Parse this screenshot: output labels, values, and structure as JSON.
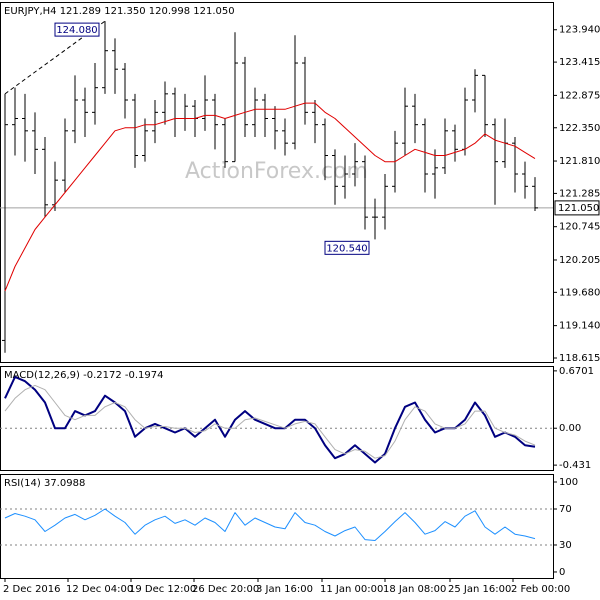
{
  "chart_data": [
    {
      "type": "ohlc",
      "title": "EURJPY,H4  121.289 121.350 120.998 121.050",
      "watermark": "ActionForex.com",
      "xlim": [
        -0.5,
        54.8
      ],
      "ylim": [
        118.55,
        124.39
      ],
      "yticks": [
        {
          "value": 123.94,
          "label": "123.940"
        },
        123.415,
        122.875,
        {
          "value": 122.35,
          "label": "122.350"
        },
        {
          "value": 121.81,
          "label": "121.810"
        },
        121.285,
        120.745,
        120.205,
        {
          "value": 119.68,
          "label": "119.680"
        },
        {
          "value": 119.14,
          "label": "119.140"
        },
        118.615
      ],
      "last_price": {
        "value": 121.05,
        "label": "121.050"
      },
      "annotations": [
        {
          "value": 124.08,
          "text": "124.080"
        },
        {
          "value": 120.54,
          "text": "120.540"
        }
      ],
      "color": "#000000",
      "open": [
        118.9,
        122.4,
        122.5,
        122.3,
        122.0,
        121.1,
        121.5,
        122.3,
        122.8,
        122.6,
        123.0,
        123.6,
        123.3,
        122.8,
        121.9,
        122.3,
        122.6,
        122.9,
        122.5,
        122.7,
        122.5,
        122.8,
        122.4,
        121.8,
        123.4,
        122.4,
        122.8,
        122.5,
        122.3,
        122.1,
        123.4,
        122.6,
        122.4,
        121.9,
        121.4,
        121.6,
        121.8,
        120.9,
        120.9,
        121.4,
        122.1,
        122.7,
        122.4,
        121.6,
        121.7,
        122.3,
        122.0,
        122.8,
        123.2,
        122.4,
        121.8,
        122.1,
        121.6,
        121.4
      ],
      "high": [
        122.9,
        123.0,
        122.9,
        122.6,
        122.2,
        121.8,
        122.5,
        123.2,
        123.0,
        123.4,
        124.08,
        123.8,
        123.4,
        122.9,
        122.5,
        122.8,
        123.1,
        123.0,
        122.9,
        122.8,
        123.2,
        122.9,
        122.5,
        123.9,
        123.5,
        123.0,
        122.9,
        122.7,
        122.5,
        123.85,
        123.5,
        122.8,
        122.5,
        122.0,
        121.9,
        122.1,
        121.9,
        121.2,
        121.6,
        122.3,
        123.0,
        122.9,
        122.5,
        122.0,
        122.5,
        122.4,
        123.0,
        123.3,
        123.2,
        122.5,
        122.5,
        122.2,
        121.8,
        121.55
      ],
      "low": [
        118.7,
        121.9,
        121.8,
        121.6,
        120.9,
        121.0,
        121.3,
        122.1,
        122.2,
        122.4,
        122.9,
        122.9,
        122.5,
        121.7,
        121.8,
        122.1,
        122.4,
        122.2,
        122.3,
        122.2,
        122.3,
        122.0,
        121.7,
        121.8,
        122.2,
        122.2,
        122.2,
        122.0,
        121.9,
        122.0,
        122.4,
        122.1,
        121.5,
        121.1,
        121.2,
        121.4,
        120.7,
        120.54,
        120.7,
        121.3,
        121.9,
        122.1,
        121.3,
        121.2,
        121.6,
        121.8,
        121.9,
        122.6,
        122.2,
        121.1,
        121.7,
        121.3,
        121.2,
        121.0
      ],
      "close": [
        122.4,
        122.5,
        122.3,
        122.0,
        121.1,
        121.5,
        122.3,
        122.8,
        122.6,
        123.0,
        123.6,
        123.3,
        122.8,
        121.9,
        122.3,
        122.6,
        122.9,
        122.5,
        122.7,
        122.5,
        122.8,
        122.4,
        121.8,
        123.4,
        122.4,
        122.8,
        122.5,
        122.3,
        122.1,
        123.4,
        122.6,
        122.4,
        121.9,
        121.4,
        121.6,
        121.8,
        120.9,
        120.9,
        121.4,
        122.1,
        122.7,
        122.4,
        121.6,
        121.7,
        122.3,
        122.0,
        122.8,
        123.2,
        122.4,
        121.8,
        122.1,
        121.6,
        121.4,
        121.05
      ],
      "series": [
        {
          "color": "#e00000",
          "values": [
            119.7,
            120.1,
            120.4,
            120.7,
            120.9,
            121.1,
            121.3,
            121.5,
            121.7,
            121.9,
            122.1,
            122.3,
            122.35,
            122.35,
            122.4,
            122.4,
            122.45,
            122.5,
            122.5,
            122.5,
            122.55,
            122.55,
            122.5,
            122.55,
            122.6,
            122.65,
            122.65,
            122.65,
            122.65,
            122.7,
            122.75,
            122.75,
            122.6,
            122.5,
            122.35,
            122.2,
            122.05,
            121.9,
            121.8,
            121.8,
            121.9,
            122.0,
            121.95,
            121.9,
            121.9,
            121.95,
            122.0,
            122.1,
            122.25,
            122.15,
            122.1,
            122.05,
            121.95,
            121.85
          ]
        }
      ]
    },
    {
      "type": "line",
      "title": "MACD(12,26,9) -0.2172 -0.1974",
      "xlim": [
        -0.5,
        54.8
      ],
      "ylim": [
        -0.488,
        0.727
      ],
      "yticks": [
        0.6701,
        {
          "value": 0,
          "label": "0.00"
        },
        -0.431
      ],
      "series": [
        {
          "color": "#000080",
          "width": 2,
          "values": [
            0.35,
            0.6,
            0.55,
            0.45,
            0.3,
            0.0,
            0.0,
            0.2,
            0.15,
            0.2,
            0.38,
            0.3,
            0.2,
            -0.1,
            0.0,
            0.05,
            0.0,
            -0.05,
            0.0,
            -0.1,
            0.0,
            0.1,
            -0.1,
            0.1,
            0.2,
            0.1,
            0.05,
            0.0,
            0.0,
            0.1,
            0.1,
            0.0,
            -0.2,
            -0.35,
            -0.3,
            -0.2,
            -0.3,
            -0.4,
            -0.3,
            0.0,
            0.25,
            0.3,
            0.1,
            -0.05,
            0.0,
            0.0,
            0.1,
            0.3,
            0.15,
            -0.1,
            -0.05,
            -0.1,
            -0.2,
            -0.2172
          ]
        },
        {
          "color": "#b0b0b0",
          "width": 1,
          "values": [
            0.2,
            0.35,
            0.45,
            0.5,
            0.45,
            0.3,
            0.15,
            0.1,
            0.15,
            0.15,
            0.25,
            0.3,
            0.25,
            0.1,
            0.0,
            0.02,
            0.02,
            0.0,
            0.0,
            -0.05,
            -0.03,
            0.05,
            0.0,
            0.0,
            0.1,
            0.12,
            0.08,
            0.04,
            0.0,
            0.05,
            0.08,
            0.05,
            -0.1,
            -0.25,
            -0.3,
            -0.25,
            -0.27,
            -0.35,
            -0.32,
            -0.15,
            0.1,
            0.25,
            0.2,
            0.05,
            0.0,
            0.0,
            0.05,
            0.2,
            0.2,
            0.0,
            -0.05,
            -0.08,
            -0.15,
            -0.1974
          ]
        }
      ]
    },
    {
      "type": "line",
      "title": "RSI(14) 37.0988",
      "xlim": [
        -0.5,
        54.8
      ],
      "ylim": [
        -6.7,
        108.9
      ],
      "yticks": [
        100,
        70,
        30,
        0
      ],
      "xticks": [
        {
          "value": 0,
          "label": "2 Dec 2016"
        },
        {
          "value": 6.3,
          "label": "12 Dec 04:00"
        },
        {
          "value": 12.6,
          "label": "19 Dec 12:00"
        },
        {
          "value": 18.9,
          "label": "26 Dec 20:00"
        },
        {
          "value": 25.3,
          "label": "3 Jan 16:00"
        },
        {
          "value": 31.7,
          "label": "11 Jan 00:00"
        },
        {
          "value": 38,
          "label": "18 Jan 08:00"
        },
        {
          "value": 44.5,
          "label": "25 Jan 16:00"
        },
        {
          "value": 50.8,
          "label": "2 Feb 00:00"
        }
      ],
      "series": [
        {
          "color": "#1e90ff",
          "width": 1,
          "values": [
            60,
            65,
            62,
            58,
            45,
            52,
            60,
            64,
            58,
            63,
            70,
            62,
            55,
            42,
            52,
            58,
            62,
            54,
            58,
            52,
            60,
            55,
            45,
            66,
            52,
            60,
            55,
            50,
            48,
            66,
            55,
            52,
            45,
            40,
            46,
            50,
            36,
            35,
            45,
            56,
            66,
            55,
            42,
            46,
            56,
            50,
            62,
            68,
            50,
            42,
            50,
            42,
            40,
            37.0988
          ]
        }
      ]
    }
  ]
}
